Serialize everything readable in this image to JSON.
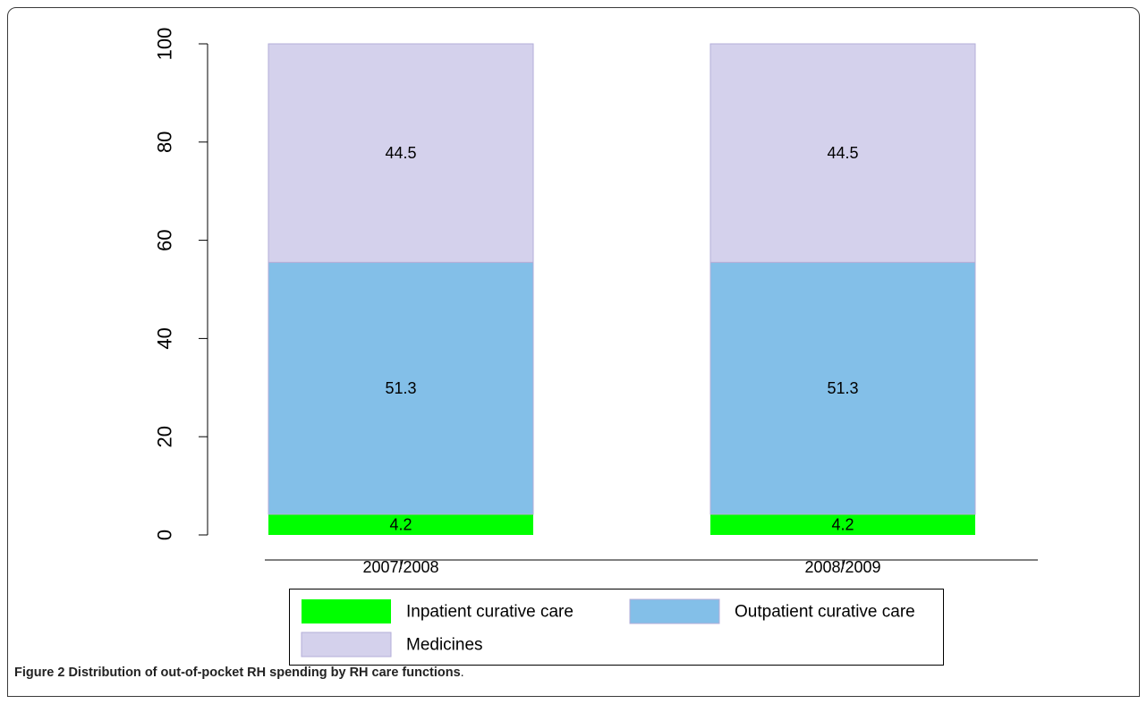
{
  "chart_data": {
    "type": "bar",
    "stacked": true,
    "categories": [
      "2007/2008",
      "2008/2009"
    ],
    "series": [
      {
        "name": "Inpatient curative care",
        "values": [
          4.2,
          4.2
        ],
        "color": "#00ff00"
      },
      {
        "name": "Outpatient curative care",
        "values": [
          51.3,
          51.3
        ],
        "color": "#83bfe8"
      },
      {
        "name": "Medicines",
        "values": [
          44.5,
          44.5
        ],
        "color": "#d4d1ec"
      }
    ],
    "yticks": [
      0,
      20,
      40,
      60,
      80,
      100
    ],
    "ylim": [
      0,
      100
    ],
    "legend_position": "bottom",
    "grid": false
  },
  "caption": {
    "label": "Figure 2",
    "text": "Distribution of out-of-pocket RH spending by RH care functions",
    "end": "."
  }
}
